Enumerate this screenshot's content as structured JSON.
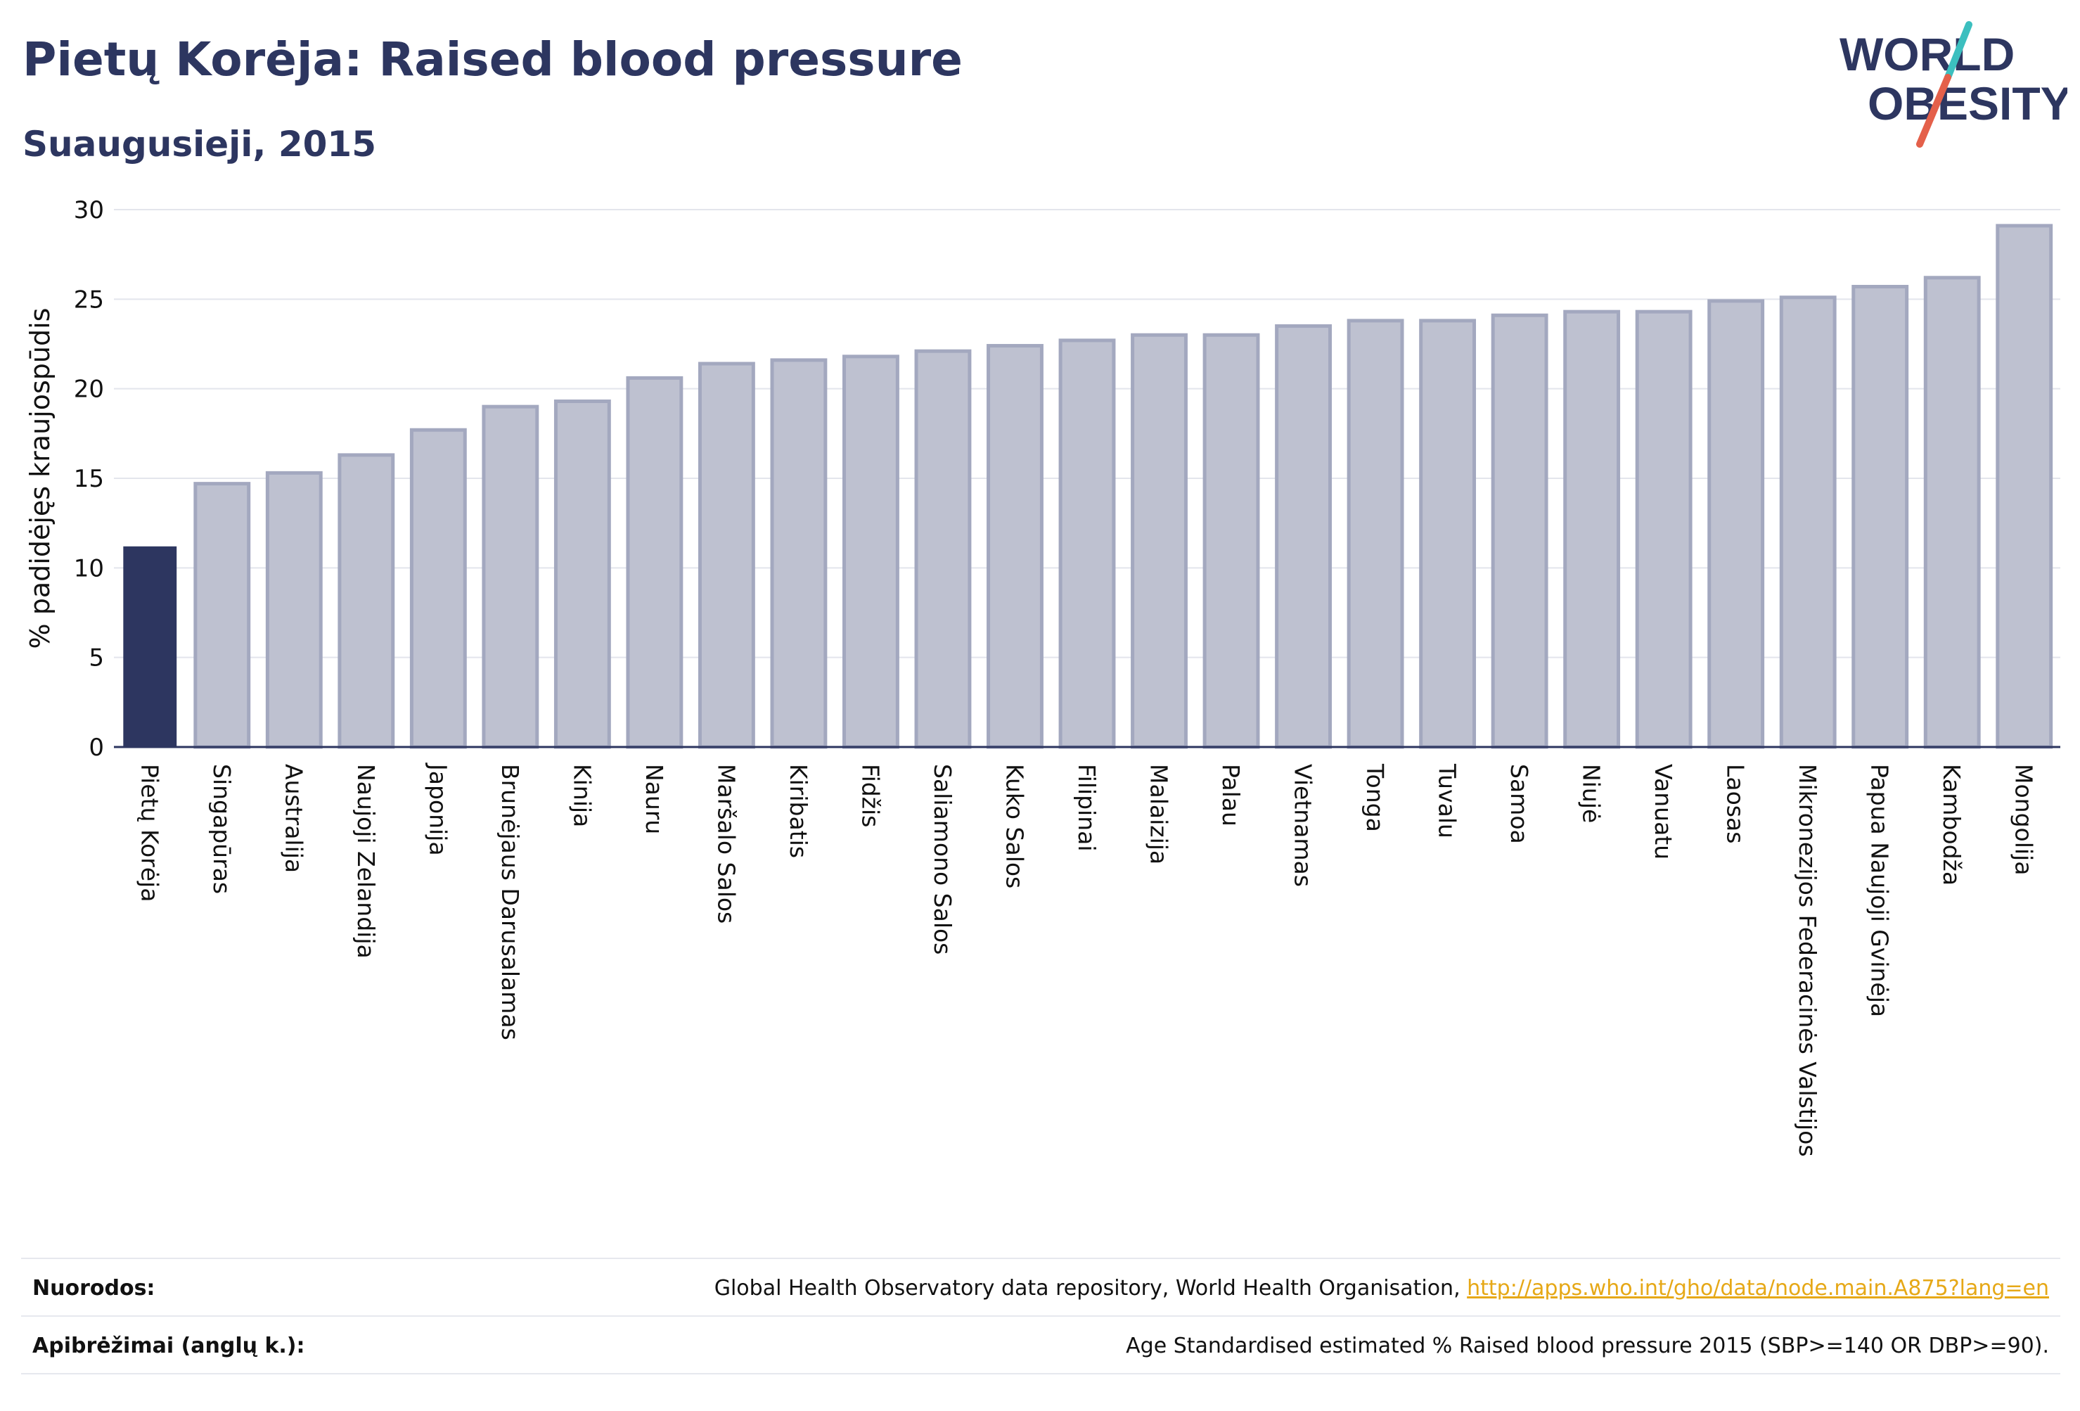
{
  "header": {
    "title": "Pietų Korėja: Raised blood pressure",
    "subtitle": "Suaugusieji, 2015"
  },
  "logo": {
    "line1": "WORLD",
    "line2": "OBESITY",
    "colors": {
      "text": "#2d3660",
      "slash_teal": "#3cbfbf",
      "slash_red": "#e4604a"
    }
  },
  "colors": {
    "highlight_bar": "#2d3660",
    "other_bar_fill": "#bec1d0",
    "other_bar_stroke": "#a3a8bf",
    "grid": "#e3e5ec",
    "axis": "#2d3660"
  },
  "chart_data": {
    "type": "bar",
    "title": "Pietų Korėja: Raised blood pressure",
    "subtitle": "Suaugusieji, 2015",
    "xlabel": "",
    "ylabel": "% padidėjęs kraujospūdis",
    "ylim": [
      0,
      30
    ],
    "yticks": [
      0,
      5,
      10,
      15,
      20,
      25,
      30
    ],
    "grid": true,
    "highlight": "Pietų Korėja",
    "categories": [
      "Pietų Korėja",
      "Singapūras",
      "Australija",
      "Naujoji Zelandija",
      "Japonija",
      "Brunėjaus Darusalamas",
      "Kinija",
      "Nauru",
      "Maršalo Salos",
      "Kiribatis",
      "Fidžis",
      "Saliamono Salos",
      "Kuko Salos",
      "Filipinai",
      "Malaizija",
      "Palau",
      "Vietnamas",
      "Tonga",
      "Tuvalu",
      "Samoa",
      "Niujė",
      "Vanuatu",
      "Laosas",
      "Mikronezijos Federacinės Valstijos",
      "Papua Naujoji Gvinėja",
      "Kambodža",
      "Mongolija"
    ],
    "values": [
      11.2,
      14.7,
      15.3,
      16.3,
      17.7,
      19.0,
      19.3,
      20.6,
      21.4,
      21.6,
      21.8,
      22.1,
      22.4,
      22.7,
      23.0,
      23.0,
      23.5,
      23.8,
      23.8,
      24.1,
      24.3,
      24.3,
      24.9,
      25.1,
      25.7,
      26.2,
      29.1
    ]
  },
  "footer": {
    "sources_label": "Nuorodos:",
    "sources_text": "Global Health Observatory data repository, World Health Organisation, ",
    "sources_link": "http://apps.who.int/gho/data/node.main.A875?lang=en",
    "definitions_label": "Apibrėžimai (anglų k.):",
    "definitions_text": "Age Standardised estimated % Raised blood pressure 2015 (SBP>=140 OR DBP>=90)."
  }
}
